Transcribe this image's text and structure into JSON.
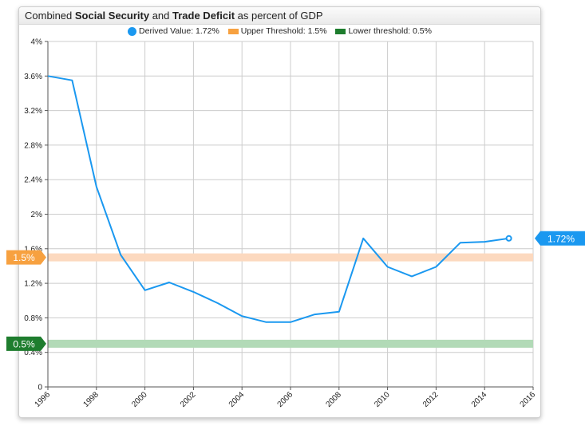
{
  "title": {
    "prefix": "Combined ",
    "bold1": "Social Security",
    "mid": " and ",
    "bold2": "Trade Deficit",
    "suffix": " as percent of GDP"
  },
  "legend": [
    {
      "label": "Derived Value: 1.72%",
      "color": "#1a98f0",
      "shape": "dot"
    },
    {
      "label": "Upper Threshold: 1.5%",
      "color": "#f7a140",
      "shape": "bar"
    },
    {
      "label": "Lower threshold: 0.5%",
      "color": "#1e7d2e",
      "shape": "bar"
    }
  ],
  "colors": {
    "series": "#1a98f0",
    "upper_band": "#fcd9bf",
    "lower_band": "#b2dab7",
    "upper_tag": "#f7a140",
    "lower_tag": "#1e7d2e",
    "grid": "#cccccc"
  },
  "chart_data": {
    "type": "line",
    "x": [
      1996,
      1997,
      1998,
      1999,
      2000,
      2001,
      2002,
      2003,
      2004,
      2005,
      2006,
      2007,
      2008,
      2009,
      2010,
      2011,
      2012,
      2013,
      2014,
      2015
    ],
    "series": [
      {
        "name": "Derived Value",
        "values": [
          3.6,
          3.55,
          2.32,
          1.53,
          1.12,
          1.21,
          1.1,
          0.97,
          0.82,
          0.75,
          0.75,
          0.84,
          0.87,
          1.72,
          1.39,
          1.28,
          1.39,
          1.67,
          1.68,
          1.72
        ]
      }
    ],
    "xlim": [
      1996,
      2016
    ],
    "ylim": [
      0,
      4
    ],
    "x_ticks": [
      1996,
      1998,
      2000,
      2002,
      2004,
      2006,
      2008,
      2010,
      2012,
      2014,
      2016
    ],
    "x_tick_labels": [
      "1996",
      "1998",
      "2000",
      "2002",
      "2004",
      "2006",
      "2008",
      "2010",
      "2012",
      "2014",
      "2016"
    ],
    "y_ticks": [
      0,
      0.4,
      0.8,
      1.2,
      1.6,
      2,
      2.4,
      2.8,
      3.2,
      3.6,
      4
    ],
    "y_tick_labels": [
      "0",
      "0.4%",
      "0.8%",
      "1.2%",
      "1.6%",
      "2%",
      "2.4%",
      "2.8%",
      "3.2%",
      "3.6%",
      "4%"
    ],
    "thresholds": [
      {
        "value": 1.5,
        "label": "1.5%",
        "kind": "upper"
      },
      {
        "value": 0.5,
        "label": "0.5%",
        "kind": "lower"
      }
    ],
    "end_label": "1.72%",
    "grid": true,
    "legend_position": "top-center"
  }
}
